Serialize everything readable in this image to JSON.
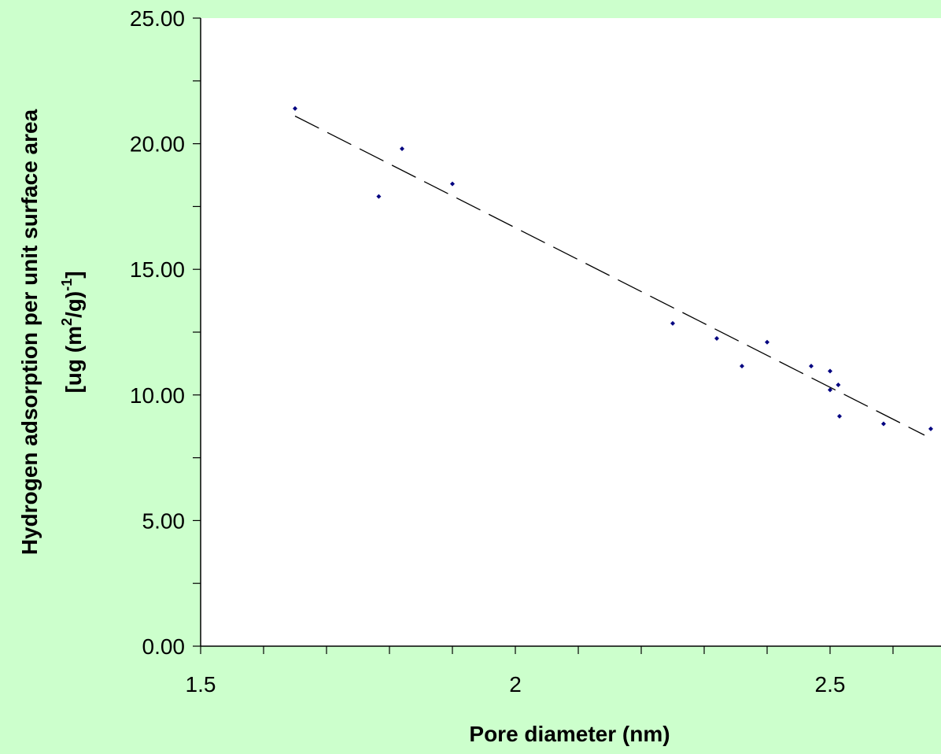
{
  "chart_data": {
    "type": "scatter",
    "xlabel": "Pore diameter (nm)",
    "ylabel_line1": "Hydrogen adsorption per unit surface area",
    "ylabel_line2_prefix": "[ug (m",
    "ylabel_line2_sup1": "2",
    "ylabel_line2_mid": "/g)",
    "ylabel_line2_sup2": "-1",
    "ylabel_line2_suffix": "]",
    "xlim": [
      1.5,
      2.7
    ],
    "ylim": [
      0,
      25
    ],
    "x_ticks": [
      1.5,
      2,
      2.5
    ],
    "x_tick_labels": [
      "1.5",
      "2",
      "2.5"
    ],
    "x_minor_step": 0.1,
    "y_ticks": [
      0,
      5,
      10,
      15,
      20,
      25
    ],
    "y_tick_labels": [
      "0.00",
      "5.00",
      "10.00",
      "15.00",
      "20.00",
      "25.00"
    ],
    "y_minor_step": 2.5,
    "grid": false,
    "legend": "none",
    "series": [
      {
        "points": [
          [
            1.65,
            21.4
          ],
          [
            1.783,
            17.9
          ],
          [
            1.82,
            19.8
          ],
          [
            1.9,
            18.4
          ],
          [
            2.25,
            12.85
          ],
          [
            2.32,
            12.25
          ],
          [
            2.36,
            11.15
          ],
          [
            2.4,
            12.1
          ],
          [
            2.47,
            11.15
          ],
          [
            2.5,
            10.95
          ],
          [
            2.5,
            10.2
          ],
          [
            2.513,
            10.4
          ],
          [
            2.515,
            9.15
          ],
          [
            2.585,
            8.85
          ],
          [
            2.66,
            8.65
          ]
        ],
        "color": "#000080"
      }
    ],
    "trendline": {
      "style": "dashed",
      "color": "#000000",
      "from": [
        1.65,
        21.1
      ],
      "to": [
        2.65,
        8.4
      ]
    }
  }
}
